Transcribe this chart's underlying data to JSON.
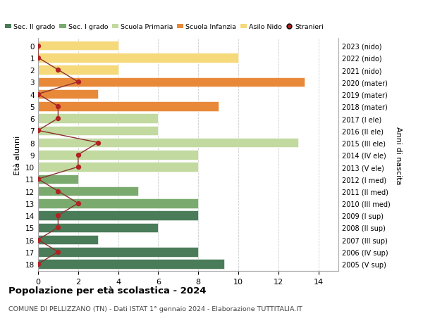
{
  "ages": [
    18,
    17,
    16,
    15,
    14,
    13,
    12,
    11,
    10,
    9,
    8,
    7,
    6,
    5,
    4,
    3,
    2,
    1,
    0
  ],
  "bar_values": [
    9.3,
    8.0,
    3.0,
    6.0,
    8.0,
    8.0,
    5.0,
    2.0,
    8.0,
    8.0,
    13.0,
    6.0,
    6.0,
    9.0,
    3.0,
    13.3,
    4.0,
    10.0,
    4.0
  ],
  "bar_colors": [
    "#4a7c59",
    "#4a7c59",
    "#4a7c59",
    "#4a7c59",
    "#4a7c59",
    "#7aaa6e",
    "#7aaa6e",
    "#7aaa6e",
    "#c2d9a0",
    "#c2d9a0",
    "#c2d9a0",
    "#c2d9a0",
    "#c2d9a0",
    "#e8893a",
    "#e8893a",
    "#e8893a",
    "#f5d97a",
    "#f5d97a",
    "#f5d97a"
  ],
  "stranieri_values": [
    0,
    1,
    0,
    1,
    1,
    2,
    1,
    0,
    2,
    2,
    3,
    0,
    1,
    1,
    0,
    2,
    1,
    0,
    0
  ],
  "right_labels": [
    "2005 (V sup)",
    "2006 (IV sup)",
    "2007 (III sup)",
    "2008 (II sup)",
    "2009 (I sup)",
    "2010 (III med)",
    "2011 (II med)",
    "2012 (I med)",
    "2013 (V ele)",
    "2014 (IV ele)",
    "2015 (III ele)",
    "2016 (II ele)",
    "2017 (I ele)",
    "2018 (mater)",
    "2019 (mater)",
    "2020 (mater)",
    "2021 (nido)",
    "2022 (nido)",
    "2023 (nido)"
  ],
  "legend_labels": [
    "Sec. II grado",
    "Sec. I grado",
    "Scuola Primaria",
    "Scuola Infanzia",
    "Asilo Nido",
    "Stranieri"
  ],
  "legend_colors": [
    "#4a7c59",
    "#7aaa6e",
    "#c2d9a0",
    "#e8893a",
    "#f5d97a",
    "#b22222"
  ],
  "ylabel_left": "Età alunni",
  "ylabel_right": "Anni di nascita",
  "title": "Popolazione per età scolastica - 2024",
  "subtitle": "COMUNE DI PELLIZZANO (TN) - Dati ISTAT 1° gennaio 2024 - Elaborazione TUTTITALIA.IT",
  "xlim": [
    0,
    15
  ],
  "xticks": [
    0,
    2,
    4,
    6,
    8,
    10,
    12,
    14
  ],
  "stranieri_color": "#b22222",
  "line_color": "#8b3030",
  "grid_color": "#cccccc"
}
